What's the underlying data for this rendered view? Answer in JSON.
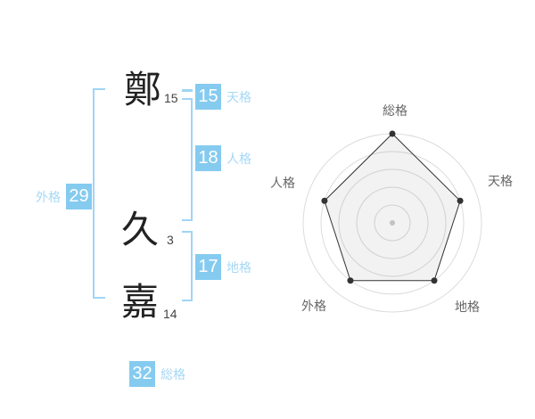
{
  "name_analysis": {
    "chars": [
      {
        "char": "鄭",
        "strokes": "15"
      },
      {
        "char": "久",
        "strokes": "3"
      },
      {
        "char": "嘉",
        "strokes": "14"
      }
    ],
    "kaku": {
      "tenkaku": {
        "value": "15",
        "label": "天格"
      },
      "jinkaku": {
        "value": "18",
        "label": "人格"
      },
      "chikaku": {
        "value": "17",
        "label": "地格"
      },
      "gaikaku": {
        "value": "29",
        "label": "外格"
      },
      "soukaku": {
        "value": "32",
        "label": "総格"
      }
    }
  },
  "colors": {
    "badge_bg": "#85cbf0",
    "badge_text": "#ffffff",
    "label_text": "#a5d8f6",
    "bracket": "#9fd5f6"
  },
  "chart_data": {
    "type": "radar",
    "categories": [
      "総格",
      "天格",
      "地格",
      "外格",
      "人格"
    ],
    "values": [
      5,
      4,
      4,
      4,
      4
    ],
    "max": 5,
    "rings": 5,
    "ring_color": "#dcdcdc",
    "line_color": "#333333",
    "fill_color": "rgba(0,0,0,0.05)",
    "dot_color": "#333333",
    "center_dot_color": "#c2c2c2",
    "label_color": "#666666",
    "legend_position": "none",
    "grid": "circular"
  }
}
